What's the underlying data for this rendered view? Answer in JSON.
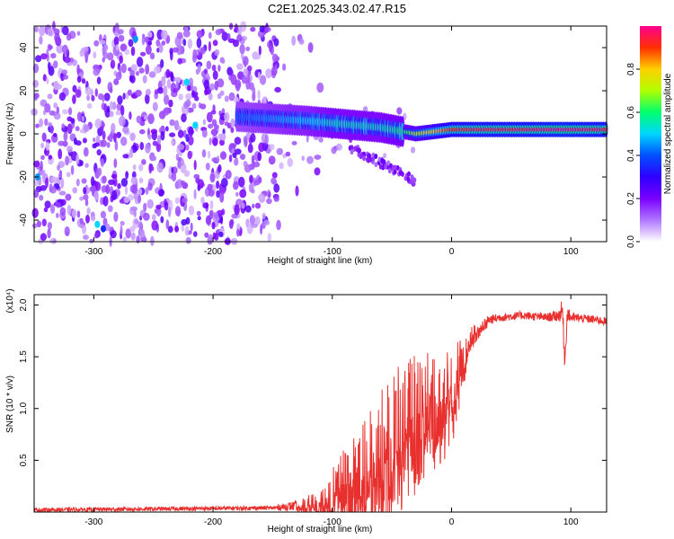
{
  "title": "C2E1.2025.343.02.47.R15",
  "chart_data": [
    {
      "type": "heatmap",
      "xlabel": "Height of straight line (km)",
      "ylabel": "Frequency (Hz)",
      "xlim": [
        -350,
        130
      ],
      "ylim": [
        -50,
        50
      ],
      "x_ticks": [
        -300,
        -200,
        -100,
        0,
        100
      ],
      "y_ticks": [
        -40,
        -20,
        0,
        20,
        40
      ],
      "colorbar": {
        "label": "Normalized spectral amplitude",
        "range": [
          0,
          1
        ],
        "ticks": [
          "0.0",
          "0.2",
          "0.4",
          "0.6",
          "0.8"
        ],
        "colors": [
          "#ffffff",
          "#b077ff",
          "#7a00ff",
          "#2f00ff",
          "#0050ff",
          "#00d6ff",
          "#00ff70",
          "#b0ff00",
          "#ffd000",
          "#ff3000",
          "#ff0090"
        ]
      },
      "ridge": {
        "frequency": [
          {
            "x": -180,
            "y": 8
          },
          {
            "x": -150,
            "y": 7
          },
          {
            "x": -120,
            "y": 6
          },
          {
            "x": -100,
            "y": 5
          },
          {
            "x": -80,
            "y": 4
          },
          {
            "x": -60,
            "y": 3
          },
          {
            "x": -40,
            "y": 1
          },
          {
            "x": -30,
            "y": 0
          },
          {
            "x": -15,
            "y": 1
          },
          {
            "x": 0,
            "y": 2
          },
          {
            "x": 20,
            "y": 2
          },
          {
            "x": 60,
            "y": 2
          },
          {
            "x": 90,
            "y": 2
          },
          {
            "x": 130,
            "y": 2
          }
        ],
        "amplitude": [
          {
            "x": -180,
            "v": 0.4
          },
          {
            "x": -150,
            "v": 0.45
          },
          {
            "x": -120,
            "v": 0.5
          },
          {
            "x": -100,
            "v": 0.55
          },
          {
            "x": -80,
            "v": 0.55
          },
          {
            "x": -60,
            "v": 0.55
          },
          {
            "x": -40,
            "v": 0.6
          },
          {
            "x": -30,
            "v": 0.7
          },
          {
            "x": -15,
            "v": 0.8
          },
          {
            "x": 0,
            "v": 0.9
          },
          {
            "x": 20,
            "v": 0.95
          },
          {
            "x": 60,
            "v": 0.95
          },
          {
            "x": 90,
            "v": 1.0
          },
          {
            "x": 130,
            "v": 0.95
          }
        ]
      }
    },
    {
      "type": "line",
      "xlabel": "Height of straight line (km)",
      "ylabel": "SNR (10 * v/v)",
      "y_multiplier_label": "(x10⁴)",
      "xlim": [
        -350,
        130
      ],
      "ylim": [
        0,
        2.1
      ],
      "x_ticks": [
        -300,
        -200,
        -100,
        0,
        100
      ],
      "y_ticks": [
        0.5,
        1.0,
        1.5,
        2.0
      ],
      "y_tick_labels": [
        "0.5",
        "1.0",
        "1.5",
        "2.0"
      ],
      "color": "#e8312e",
      "series": [
        {
          "x": [
            -350,
            -250,
            -150,
            -130,
            -110,
            -100,
            -90,
            -80,
            -70,
            -60,
            -50,
            -40,
            -30,
            -20,
            -10,
            0,
            5,
            10,
            15,
            20,
            25,
            30,
            40,
            60,
            80,
            90,
            93,
            95,
            97,
            100,
            110,
            120,
            130
          ],
          "y": [
            0.02,
            0.03,
            0.04,
            0.06,
            0.1,
            0.18,
            0.3,
            0.35,
            0.45,
            0.6,
            0.75,
            0.85,
            1.0,
            1.15,
            1.1,
            1.2,
            1.35,
            1.5,
            1.65,
            1.75,
            1.8,
            1.85,
            1.88,
            1.9,
            1.88,
            1.9,
            1.95,
            1.45,
            1.92,
            1.88,
            1.87,
            1.86,
            1.84
          ],
          "noise": [
            0.02,
            0.02,
            0.02,
            0.05,
            0.12,
            0.25,
            0.35,
            0.45,
            0.5,
            0.55,
            0.6,
            0.6,
            0.55,
            0.5,
            0.45,
            0.4,
            0.3,
            0.2,
            0.12,
            0.08,
            0.06,
            0.05,
            0.04,
            0.04,
            0.04,
            0.06,
            0.12,
            0.1,
            0.08,
            0.05,
            0.04,
            0.04,
            0.04
          ]
        }
      ]
    }
  ]
}
